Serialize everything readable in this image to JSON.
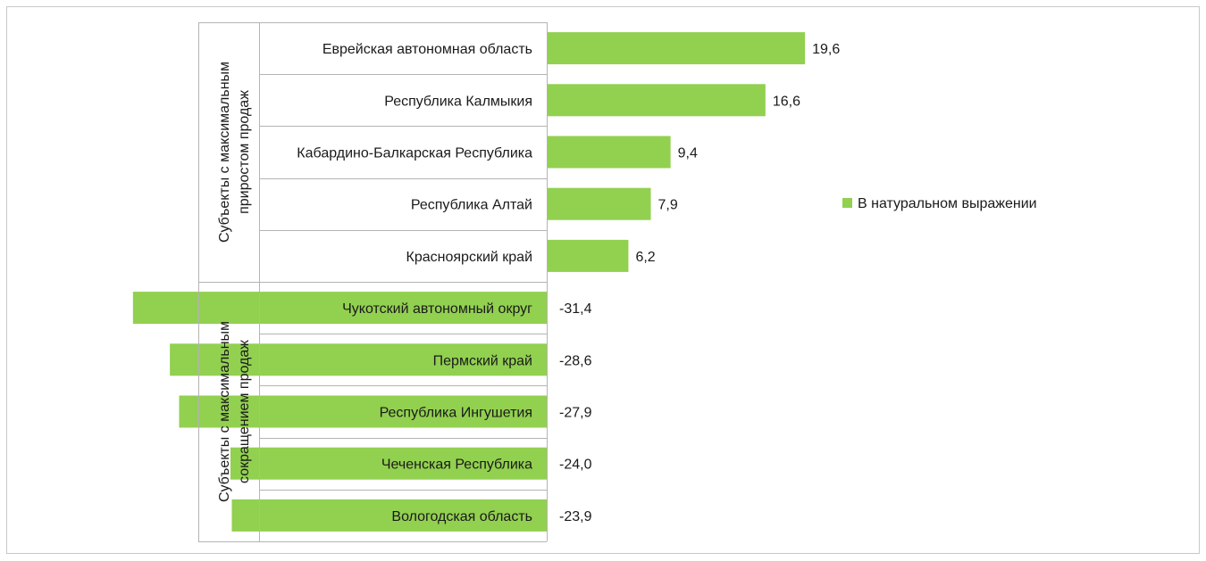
{
  "chart_data": {
    "type": "bar",
    "orientation": "horizontal",
    "categories": [
      "Еврейская автономная область",
      "Республика Калмыкия",
      "Кабардино-Балкарская Республика",
      "Республика Алтай",
      "Красноярский край",
      "Чукотский автономный округ",
      "Пермский край",
      "Республика Ингушетия",
      "Чеченская Республика",
      "Вологодская область"
    ],
    "series": [
      {
        "name": "В натуральном выражении",
        "color": "#92d050",
        "values": [
          19.6,
          16.6,
          9.4,
          7.9,
          6.2,
          -31.4,
          -28.6,
          -27.9,
          -24.0,
          -23.9
        ],
        "value_labels": [
          "19,6",
          "16,6",
          "9,4",
          "7,9",
          "6,2",
          "-31,4",
          "-28,6",
          "-27,9",
          "-24,0",
          "-23,9"
        ]
      }
    ],
    "groups": [
      {
        "label_lines": [
          "Субъекты с максимальным",
          "приростом продаж"
        ],
        "count": 5
      },
      {
        "label_lines": [
          "Субъекты с максимальным",
          "сокращением продаж"
        ],
        "count": 5
      }
    ],
    "xlim": [
      -31.4,
      19.6
    ],
    "legend": {
      "position": "right",
      "label": "В натуральном выражении"
    },
    "grid": false
  }
}
